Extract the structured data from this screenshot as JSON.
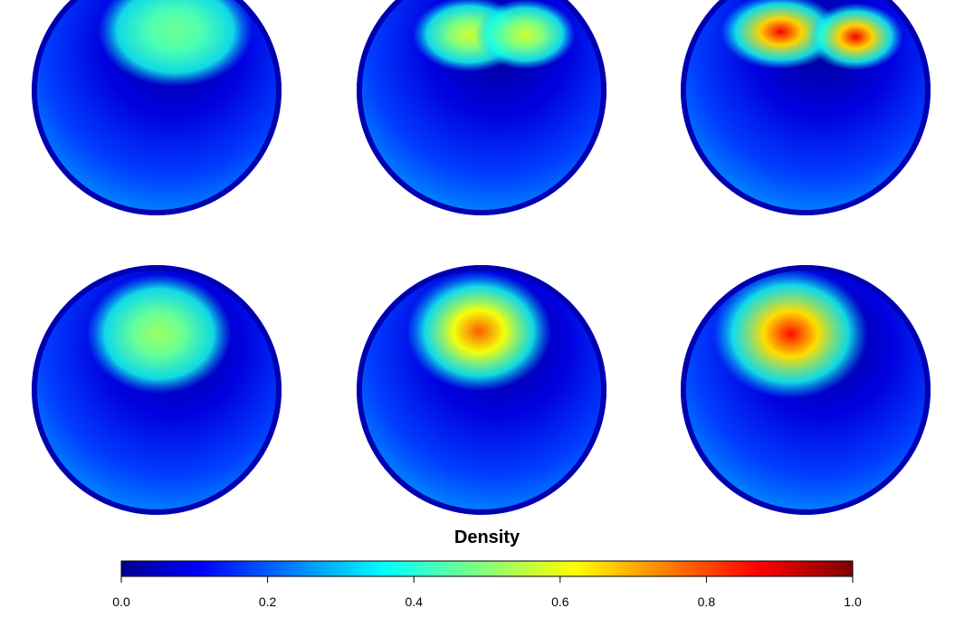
{
  "chart_data": {
    "type": "heatmap",
    "title": "",
    "layout": {
      "rows": 2,
      "cols": 3
    },
    "colorbar": {
      "title": "Density",
      "range": [
        0.0,
        1.0
      ],
      "ticks": [
        0.0,
        0.2,
        0.4,
        0.6,
        0.8,
        1.0
      ],
      "tick_labels": [
        "0.0",
        "0.2",
        "0.4",
        "0.6",
        "0.8",
        "1.0"
      ],
      "colormap": [
        "#00008f",
        "#0000ff",
        "#00ffff",
        "#ffff00",
        "#ff0000",
        "#7f0000"
      ]
    },
    "panels": [
      {
        "row": 1,
        "col": 1,
        "peak_density": 0.47,
        "pattern": "single broad lobe, upper hemisphere"
      },
      {
        "row": 1,
        "col": 2,
        "peak_density": 0.57,
        "pattern": "two lobes meeting at a point"
      },
      {
        "row": 1,
        "col": 3,
        "peak_density": 0.88,
        "pattern": "two sharp lobes meeting at a point"
      },
      {
        "row": 2,
        "col": 1,
        "peak_density": 0.52,
        "pattern": "single lobe, upper left"
      },
      {
        "row": 2,
        "col": 2,
        "peak_density": 0.78,
        "pattern": "single lobe, upper center"
      },
      {
        "row": 2,
        "col": 3,
        "peak_density": 0.86,
        "pattern": "single lobe, upper center-left"
      }
    ]
  }
}
